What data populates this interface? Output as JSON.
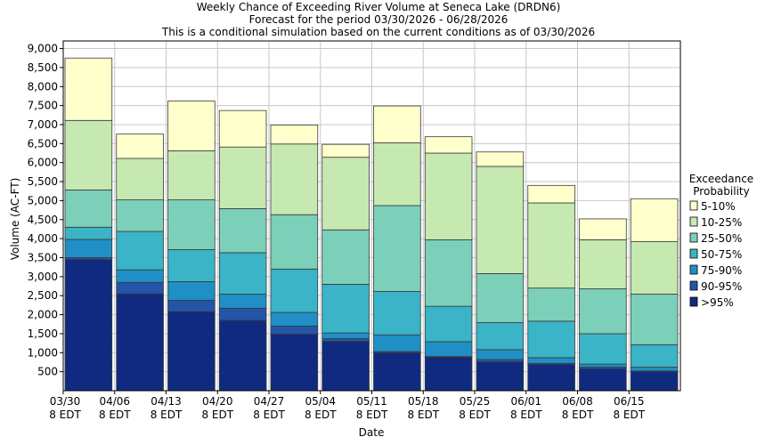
{
  "chart_data": {
    "type": "bar",
    "stacked": true,
    "title": [
      "Weekly Chance of Exceeding River Volume at Seneca Lake (DRDN6)",
      "Forecast for the period 03/30/2026 - 06/28/2026",
      "This is a conditional simulation based on the current conditions as of 03/30/2026"
    ],
    "xlabel": "Date",
    "ylabel": "Volume (AC-FT)",
    "ylim": [
      0,
      9200
    ],
    "yticks": [
      500,
      1000,
      1500,
      2000,
      2500,
      3000,
      3500,
      4000,
      4500,
      5000,
      5500,
      6000,
      6500,
      7000,
      7500,
      8000,
      8500,
      9000
    ],
    "ytick_labels": [
      "500",
      "1,000",
      "1,500",
      "2,000",
      "2,500",
      "3,000",
      "3,500",
      "4,000",
      "4,500",
      "5,000",
      "5,500",
      "6,000",
      "6,500",
      "7,000",
      "7,500",
      "8,000",
      "8,500",
      "9,000"
    ],
    "xtick_labels": [
      [
        "03/30",
        "8 EDT"
      ],
      [
        "04/06",
        "8 EDT"
      ],
      [
        "04/13",
        "8 EDT"
      ],
      [
        "04/20",
        "8 EDT"
      ],
      [
        "04/27",
        "8 EDT"
      ],
      [
        "05/04",
        "8 EDT"
      ],
      [
        "05/11",
        "8 EDT"
      ],
      [
        "05/18",
        "8 EDT"
      ],
      [
        "05/25",
        "8 EDT"
      ],
      [
        "06/01",
        "8 EDT"
      ],
      [
        "06/08",
        "8 EDT"
      ],
      [
        "06/15",
        "8 EDT"
      ]
    ],
    "grid": true,
    "legend": {
      "title": [
        "Exceedance",
        "Probability"
      ],
      "placement": "right"
    },
    "series": [
      {
        "name": ">95%",
        "color": "#102a80",
        "tops": [
          3450,
          2550,
          2080,
          1850,
          1490,
          1300,
          1000,
          880,
          760,
          690,
          580,
          500
        ]
      },
      {
        "name": "90-95%",
        "color": "#2455a8",
        "tops": [
          3500,
          2850,
          2380,
          2170,
          1700,
          1370,
          1030,
          900,
          820,
          720,
          620,
          520
        ]
      },
      {
        "name": "75-90%",
        "color": "#1f8fc6",
        "tops": [
          3980,
          3180,
          2870,
          2540,
          2060,
          1520,
          1470,
          1290,
          1080,
          870,
          700,
          620
        ]
      },
      {
        "name": "50-75%",
        "color": "#3ab4c6",
        "tops": [
          4300,
          4190,
          3710,
          3630,
          3200,
          2800,
          2610,
          2220,
          1790,
          1830,
          1500,
          1210
        ]
      },
      {
        "name": "25-50%",
        "color": "#7ccfb8",
        "tops": [
          5280,
          5020,
          5020,
          4790,
          4630,
          4230,
          4870,
          3970,
          3080,
          2700,
          2680,
          2540
        ]
      },
      {
        "name": "10-25%",
        "color": "#c6e8b1",
        "tops": [
          7110,
          6110,
          6310,
          6410,
          6490,
          6140,
          6520,
          6250,
          5900,
          4940,
          3970,
          3920
        ]
      },
      {
        "name": "5-10%",
        "color": "#ffffcc",
        "tops": [
          8750,
          6750,
          7620,
          7370,
          6990,
          6480,
          7490,
          6680,
          6280,
          5400,
          4520,
          5050
        ]
      }
    ]
  }
}
